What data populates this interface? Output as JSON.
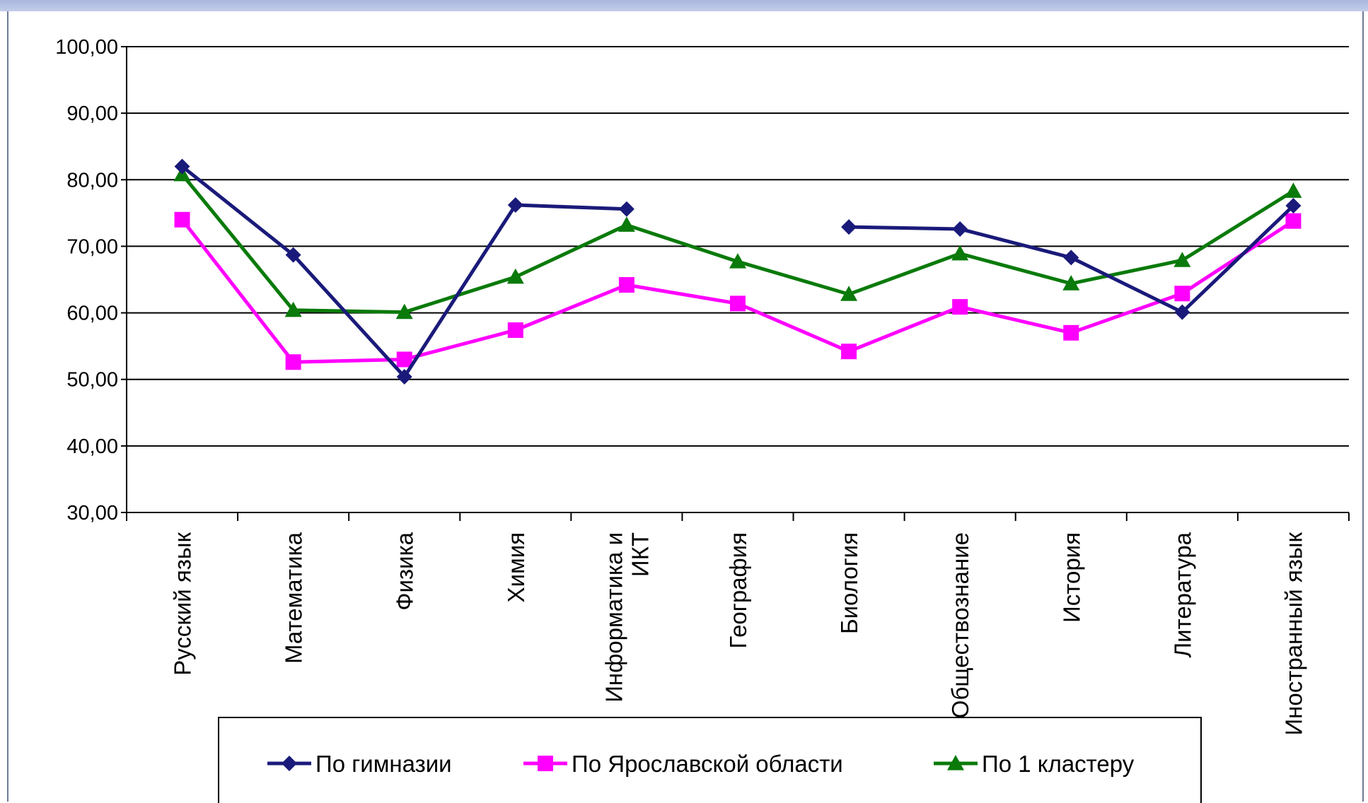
{
  "chart_data": {
    "type": "line",
    "categories": [
      "Русский язык",
      "Математика",
      "Физика",
      "Химия",
      "Информатика  и ИКТ",
      "География",
      "Биология",
      "Обществознание",
      "История",
      "Литература",
      "Иностранный  язык"
    ],
    "category_lines": [
      [
        "Русский язык"
      ],
      [
        "Математика"
      ],
      [
        "Физика"
      ],
      [
        "Химия"
      ],
      [
        "Информатика  и",
        "ИКТ"
      ],
      [
        "География"
      ],
      [
        "Биология"
      ],
      [
        "Обществознание"
      ],
      [
        "История"
      ],
      [
        "Литература"
      ],
      [
        "Иностранный  язык"
      ]
    ],
    "series": [
      {
        "name": "По гимназии",
        "color": "#1a1a7a",
        "marker": "diamond",
        "values": [
          82.0,
          68.7,
          50.4,
          76.2,
          75.6,
          null,
          72.9,
          72.6,
          68.3,
          60.1,
          76.1
        ]
      },
      {
        "name": "По Ярославской области",
        "color": "#ff00ff",
        "marker": "square",
        "values": [
          74.0,
          52.6,
          53.0,
          57.4,
          64.2,
          61.4,
          54.2,
          60.9,
          57.0,
          62.9,
          73.8
        ]
      },
      {
        "name": "По 1 кластеру",
        "color": "#0a7a0a",
        "marker": "triangle",
        "values": [
          80.8,
          60.4,
          60.1,
          65.4,
          73.2,
          67.7,
          62.8,
          68.9,
          64.4,
          67.9,
          78.3
        ]
      }
    ],
    "y_ticks": [
      "100,00",
      "90,00",
      "80,00",
      "70,00",
      "60,00",
      "50,00",
      "40,00",
      "30,00"
    ],
    "ylim": [
      30,
      100
    ],
    "grid": true,
    "legend_position": "bottom"
  }
}
